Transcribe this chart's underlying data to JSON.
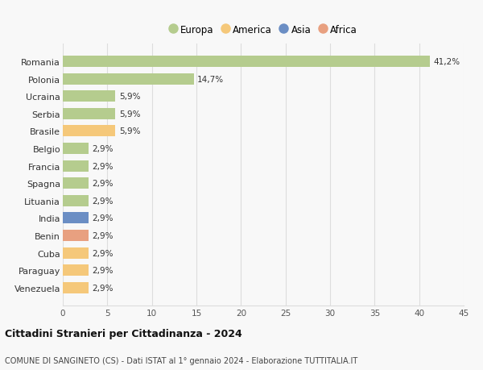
{
  "countries": [
    "Romania",
    "Polonia",
    "Ucraina",
    "Serbia",
    "Brasile",
    "Belgio",
    "Francia",
    "Spagna",
    "Lituania",
    "India",
    "Benin",
    "Cuba",
    "Paraguay",
    "Venezuela"
  ],
  "values": [
    41.2,
    14.7,
    5.9,
    5.9,
    5.9,
    2.9,
    2.9,
    2.9,
    2.9,
    2.9,
    2.9,
    2.9,
    2.9,
    2.9
  ],
  "labels": [
    "41,2%",
    "14,7%",
    "5,9%",
    "5,9%",
    "5,9%",
    "2,9%",
    "2,9%",
    "2,9%",
    "2,9%",
    "2,9%",
    "2,9%",
    "2,9%",
    "2,9%",
    "2,9%"
  ],
  "continents": [
    "Europa",
    "Europa",
    "Europa",
    "Europa",
    "America",
    "Europa",
    "Europa",
    "Europa",
    "Europa",
    "Asia",
    "Africa",
    "America",
    "America",
    "America"
  ],
  "colors": {
    "Europa": "#b5cc8e",
    "America": "#f5c87a",
    "Asia": "#6b8ec4",
    "Africa": "#e8a080"
  },
  "legend_order": [
    "Europa",
    "America",
    "Asia",
    "Africa"
  ],
  "xlim": [
    0,
    45
  ],
  "xticks": [
    0,
    5,
    10,
    15,
    20,
    25,
    30,
    35,
    40,
    45
  ],
  "title": "Cittadini Stranieri per Cittadinanza - 2024",
  "subtitle": "COMUNE DI SANGINETO (CS) - Dati ISTAT al 1° gennaio 2024 - Elaborazione TUTTITALIA.IT",
  "bg_color": "#f8f8f8",
  "grid_color": "#dddddd",
  "bar_height": 0.65
}
